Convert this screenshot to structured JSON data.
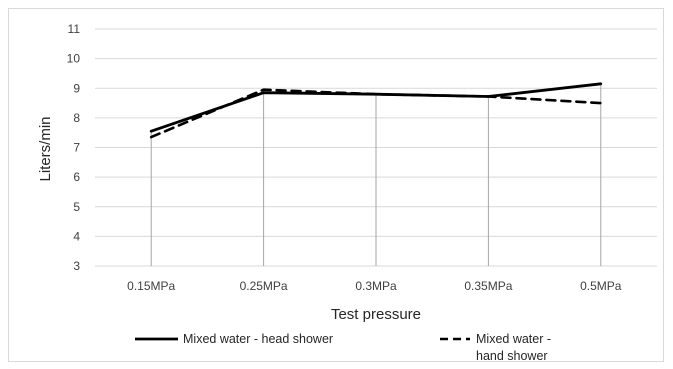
{
  "chart_data": {
    "type": "line",
    "title": "",
    "xlabel": "Test pressure",
    "ylabel": "Liters/min",
    "categories": [
      "0.15MPa",
      "0.25MPa",
      "0.3MPa",
      "0.35MPa",
      "0.5MPa"
    ],
    "ylim": [
      3,
      11
    ],
    "yticks": [
      "3",
      "4",
      "5",
      "6",
      "7",
      "8",
      "9",
      "10",
      "11"
    ],
    "grid": "horizontal major gridlines",
    "drop_lines": true,
    "legend": "bottom",
    "series": [
      {
        "name": "Mixed water - head shower",
        "name_lines": [
          "Mixed water - head shower"
        ],
        "values": [
          7.55,
          8.85,
          8.8,
          8.72,
          9.15
        ],
        "color": "#000000",
        "line_style": "solid"
      },
      {
        "name": "Mixed water - hand shower",
        "name_lines": [
          "Mixed water -",
          "hand shower"
        ],
        "values": [
          7.35,
          8.95,
          8.8,
          8.72,
          8.5
        ],
        "color": "#000000",
        "line_style": "dashed"
      }
    ]
  }
}
